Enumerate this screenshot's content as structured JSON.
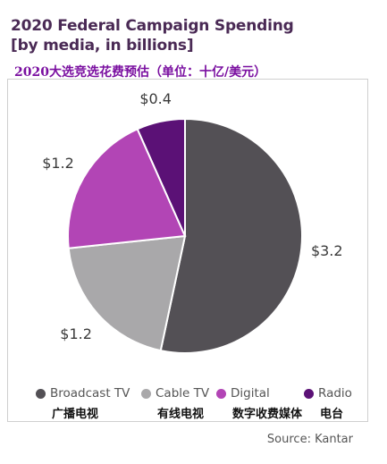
{
  "chart_data": {
    "type": "pie",
    "title": "2020 Federal Campaign Spending",
    "subtitle": "[by media, in billions]",
    "subtitle_cn": "2020大选竞选花费预估（单位：十亿/美元）",
    "unit": "billions",
    "slices": [
      {
        "name": "Broadcast TV",
        "name_cn": "广播电视",
        "value": 3.2,
        "label": "$3.2",
        "color": "#535055"
      },
      {
        "name": "Cable TV",
        "name_cn": "有线电视",
        "value": 1.2,
        "label": "$1.2",
        "color": "#a9a8aa"
      },
      {
        "name": "Digital",
        "name_cn": "数字收费媒体",
        "value": 1.2,
        "label": "$1.2",
        "color": "#b245b5"
      },
      {
        "name": "Radio",
        "name_cn": "电台",
        "value": 0.4,
        "label": "$0.4",
        "color": "#5b1176"
      }
    ],
    "legend_position": "bottom",
    "source": "Source: Kantar"
  }
}
